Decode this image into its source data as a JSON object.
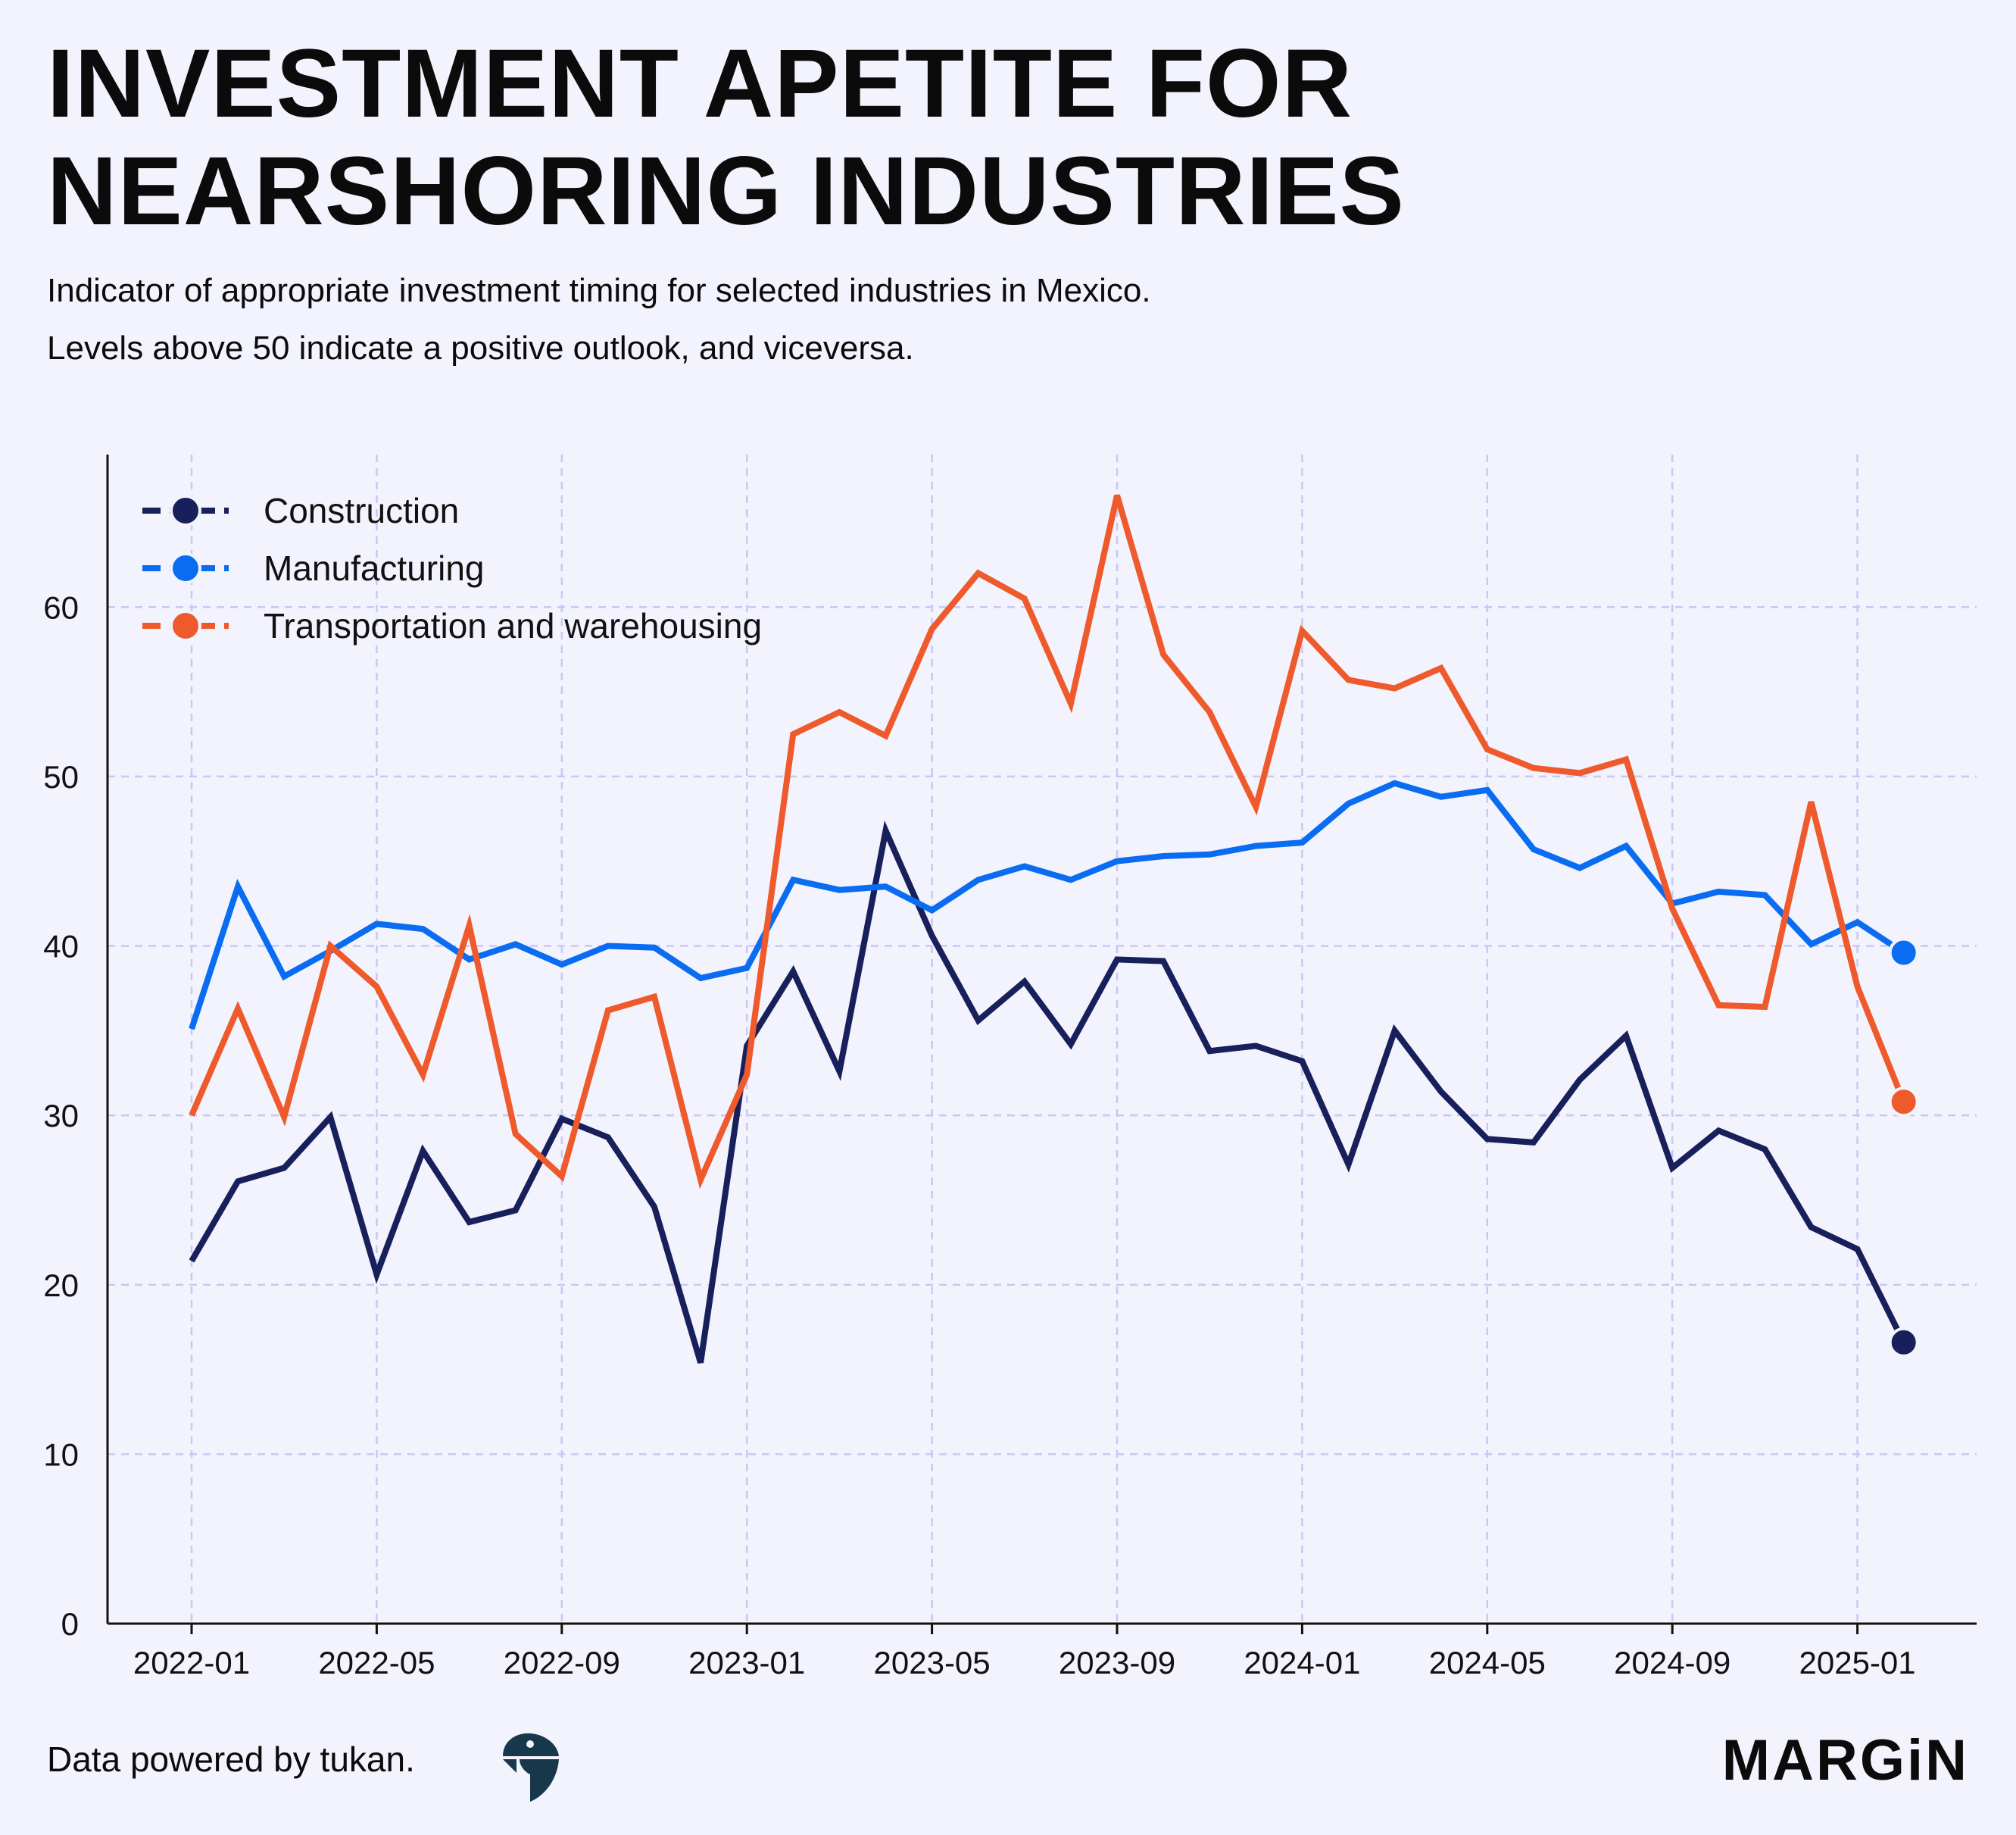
{
  "header": {
    "title_line1": "INVESTMENT APETITE FOR",
    "title_line2": "NEARSHORING INDUSTRIES",
    "subtitle_line1": "Indicator of appropriate investment timing for selected industries in Mexico.",
    "subtitle_line2": "Levels above 50 indicate a positive outlook, and viceversa."
  },
  "footer": {
    "credit": "Data powered by tukan.",
    "tukan_logo_icon": "toucan-logo-icon",
    "brand": "MARGiN"
  },
  "chart_data": {
    "type": "line",
    "title": "INVESTMENT APETITE FOR NEARSHORING INDUSTRIES",
    "subtitle": "Indicator of appropriate investment timing for selected industries in Mexico. Levels above 50 indicate a positive outlook, and viceversa.",
    "xlabel": "",
    "ylabel": "",
    "x": [
      "2022-01",
      "2022-02",
      "2022-03",
      "2022-04",
      "2022-05",
      "2022-06",
      "2022-07",
      "2022-08",
      "2022-09",
      "2022-10",
      "2022-11",
      "2022-12",
      "2023-01",
      "2023-02",
      "2023-03",
      "2023-04",
      "2023-05",
      "2023-06",
      "2023-07",
      "2023-08",
      "2023-09",
      "2023-10",
      "2023-11",
      "2023-12",
      "2024-01",
      "2024-02",
      "2024-03",
      "2024-04",
      "2024-05",
      "2024-06",
      "2024-07",
      "2024-08",
      "2024-09",
      "2024-10",
      "2024-11",
      "2024-12",
      "2025-01",
      "2025-02"
    ],
    "x_ticks": [
      "2022-01",
      "2022-05",
      "2022-09",
      "2023-01",
      "2023-05",
      "2023-09",
      "2024-01",
      "2024-05",
      "2024-09",
      "2025-01"
    ],
    "ylim": [
      0,
      69
    ],
    "y_ticks": [
      0,
      10,
      20,
      30,
      40,
      50,
      60
    ],
    "grid": true,
    "legend_position": "top-left",
    "series": [
      {
        "name": "Construction",
        "color": "#17205a",
        "values": [
          21.4,
          26.1,
          26.9,
          29.9,
          20.6,
          27.9,
          23.7,
          24.4,
          29.8,
          28.7,
          24.6,
          15.4,
          34.1,
          38.5,
          32.6,
          46.8,
          40.6,
          35.6,
          37.9,
          34.2,
          39.2,
          39.1,
          33.8,
          34.1,
          33.2,
          27.1,
          35.0,
          31.4,
          28.6,
          28.4,
          32.1,
          34.7,
          26.9,
          29.1,
          28.0,
          23.4,
          22.1,
          16.6
        ]
      },
      {
        "name": "Manufacturing",
        "color": "#0a6cf1",
        "values": [
          35.1,
          43.5,
          38.2,
          39.7,
          41.3,
          41.0,
          39.2,
          40.1,
          38.9,
          40.0,
          39.9,
          38.1,
          38.7,
          43.9,
          43.3,
          43.5,
          42.1,
          43.9,
          44.7,
          43.9,
          45.0,
          45.3,
          45.4,
          45.9,
          46.1,
          48.4,
          49.6,
          48.8,
          49.2,
          45.7,
          44.6,
          45.9,
          42.5,
          43.2,
          43.0,
          40.1,
          41.4,
          39.6
        ]
      },
      {
        "name": "Transportation and warehousing",
        "color": "#ee5a2c",
        "values": [
          30.0,
          36.3,
          29.9,
          40.0,
          37.6,
          32.4,
          41.2,
          28.9,
          26.4,
          36.2,
          37.0,
          26.2,
          32.4,
          52.5,
          53.8,
          52.4,
          58.7,
          62.0,
          60.5,
          54.3,
          66.6,
          57.2,
          53.8,
          48.2,
          58.6,
          55.7,
          55.2,
          56.4,
          51.6,
          50.5,
          50.2,
          51.0,
          42.2,
          36.5,
          36.4,
          48.5,
          37.6,
          30.8
        ]
      }
    ]
  }
}
